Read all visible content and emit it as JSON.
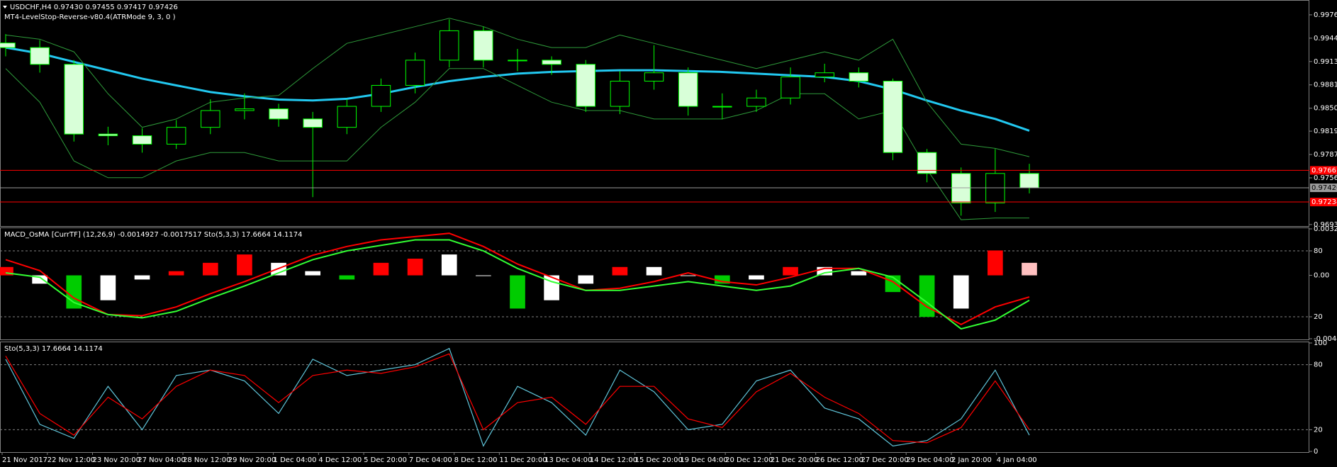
{
  "chart_data": [
    {
      "type": "candlestick",
      "title": "USDCHF,H4  0.97430 0.97455 0.97417 0.97426",
      "subtitle": "MT4-LevelStop-Reverse-v80.4(ATRMode 9, 3, 0 )",
      "open": [
        0.9938,
        0.99318,
        0.99092,
        0.98151,
        0.98128,
        0.98015,
        0.98242,
        0.98468,
        0.98491,
        0.98355,
        0.98242,
        0.98525,
        0.98808,
        0.99148,
        0.99545,
        0.99148,
        0.99148,
        0.99092,
        0.98525,
        0.98865,
        0.98978,
        0.98525,
        0.98525,
        0.98638,
        0.98922,
        0.98978,
        0.98865,
        0.97902,
        0.97619,
        0.97222,
        0.97619
      ],
      "high": [
        0.995,
        0.9942,
        0.9915,
        0.9825,
        0.9823,
        0.9834,
        0.9862,
        0.987,
        0.9856,
        0.9845,
        0.9862,
        0.989,
        0.9925,
        0.997,
        0.996,
        0.993,
        0.992,
        0.9915,
        0.99,
        0.9935,
        0.9905,
        0.987,
        0.9875,
        0.9905,
        0.991,
        0.9905,
        0.989,
        0.9795,
        0.977,
        0.9795,
        0.9775
      ],
      "low": [
        0.992,
        0.9898,
        0.9805,
        0.98,
        0.979,
        0.9795,
        0.9815,
        0.9835,
        0.9825,
        0.973,
        0.9815,
        0.9845,
        0.987,
        0.9905,
        0.9905,
        0.99,
        0.9895,
        0.9845,
        0.9842,
        0.9875,
        0.984,
        0.9835,
        0.9845,
        0.9855,
        0.9885,
        0.9878,
        0.978,
        0.975,
        0.9705,
        0.971,
        0.9735
      ],
      "close": [
        0.99318,
        0.99092,
        0.98151,
        0.98128,
        0.98015,
        0.98242,
        0.98468,
        0.98491,
        0.98355,
        0.98242,
        0.98525,
        0.98808,
        0.99148,
        0.99545,
        0.99148,
        0.99148,
        0.99092,
        0.98525,
        0.98865,
        0.98978,
        0.98525,
        0.98525,
        0.98638,
        0.98922,
        0.98978,
        0.98865,
        0.97902,
        0.97619,
        0.97222,
        0.97619,
        0.97426
      ],
      "wick_color": "#00ff00",
      "bull_fill": "#000000",
      "bear_fill": "#d8ffd8",
      "overlays": [
        {
          "color": "#22c8f0",
          "width": 3,
          "values": [
            0.99318,
            0.99239,
            0.99125,
            0.99012,
            0.98899,
            0.98808,
            0.98718,
            0.98661,
            0.98616,
            0.98604,
            0.98627,
            0.98695,
            0.98786,
            0.98865,
            0.98922,
            0.98967,
            0.9899,
            0.99001,
            0.99012,
            0.99012,
            0.99001,
            0.9899,
            0.98967,
            0.98944,
            0.98922,
            0.98865,
            0.98752,
            0.98604,
            0.98468,
            0.98355,
            0.98196
          ]
        },
        {
          "color": "#2e9a3a",
          "width": 1,
          "values": [
            0.99488,
            0.99431,
            0.99261,
            0.98695,
            0.98242,
            0.98355,
            0.98581,
            0.98638,
            0.98672,
            0.99035,
            0.99375,
            0.99488,
            0.99601,
            0.99714,
            0.99601,
            0.99431,
            0.99318,
            0.99318,
            0.99488,
            0.99375,
            0.99261,
            0.99148,
            0.99035,
            0.99148,
            0.99261,
            0.99148,
            0.99431,
            0.98581,
            0.98015,
            0.97958,
            0.97845
          ]
        },
        {
          "color": "#2e9a3a",
          "width": 1,
          "values": [
            0.99035,
            0.98581,
            0.97788,
            0.97562,
            0.97562,
            0.97788,
            0.97902,
            0.97902,
            0.97788,
            0.97788,
            0.97788,
            0.98242,
            0.98581,
            0.99035,
            0.99035,
            0.98808,
            0.98581,
            0.98468,
            0.98468,
            0.98355,
            0.98355,
            0.98355,
            0.98468,
            0.98695,
            0.98695,
            0.98355,
            0.98468,
            0.97675,
            0.96995,
            0.97018,
            0.97018
          ]
        }
      ],
      "levels": [
        {
          "value": 0.97661,
          "color": "#ff0000",
          "text_color": "#ffffff"
        },
        {
          "value": 0.97234,
          "color": "#ff0000",
          "text_color": "#ffffff"
        },
        {
          "value": 0.97426,
          "color": "#9a9a9a",
          "text_color": "#000000"
        }
      ],
      "ylim": [
        0.96919,
        0.99941
      ],
      "yticks": [
        {
          "value": 0.9976,
          "label": "0.99760"
        },
        0.99445,
        {
          "value": 0.9913,
          "label": "0.99130"
        },
        0.98815,
        {
          "value": 0.985,
          "label": "0.98500"
        },
        {
          "value": 0.9819,
          "label": "0.98190"
        },
        0.97875,
        {
          "value": 0.9756,
          "label": "0.97560"
        },
        {
          "value": 0.9693,
          "label": "0.96930"
        }
      ]
    },
    {
      "type": "bar",
      "title": "MACD_OsMA [CurrTF] (12,26,9) -0.0014927 -0.0017517  Sto(5,3,3) 17.6664 14.1174",
      "values": [
        0.00058,
        -0.00058,
        -0.00231,
        -0.00173,
        -0.00029,
        0.00029,
        0.00087,
        0.00145,
        0.00087,
        0.00029,
        -0.00029,
        0.00087,
        0.00116,
        0.00145,
        0.0,
        -0.00231,
        -0.00173,
        -0.00058,
        0.00058,
        0.00058,
        0.0,
        -0.00058,
        -0.00029,
        0.00058,
        0.00058,
        0.00029,
        -0.00116,
        -0.00289,
        -0.00231,
        0.00173,
        0.00087
      ],
      "colors": [
        "#ff0000",
        "#ffffff",
        "#00cc00",
        "#ffffff",
        "#ffffff",
        "#ff0000",
        "#ff0000",
        "#ff0000",
        "#ffffff",
        "#ffffff",
        "#00cc00",
        "#ff0000",
        "#ff0000",
        "#ffffff",
        "#ffffff",
        "#00cc00",
        "#ffffff",
        "#ffffff",
        "#ff0000",
        "#ffffff",
        "#ffffff",
        "#00cc00",
        "#ffffff",
        "#ff0000",
        "#ffffff",
        "#ffffff",
        "#00cc00",
        "#00cc00",
        "#ffffff",
        "#ff0000",
        "#ffc0c0"
      ],
      "series": [
        {
          "color": "#ff0000",
          "axis": "y2",
          "values": [
            72,
            62,
            37,
            22,
            21,
            29,
            41,
            52,
            64,
            76,
            84,
            90,
            93,
            96,
            84,
            68,
            56,
            44,
            46,
            52,
            60,
            52,
            49,
            56,
            64,
            64,
            52,
            29,
            13,
            29,
            38
          ]
        },
        {
          "color": "#33ff33",
          "axis": "y2",
          "values": [
            60,
            56,
            33,
            22,
            19,
            25,
            37,
            48,
            60,
            72,
            80,
            85,
            90,
            90,
            80,
            64,
            52,
            44,
            44,
            48,
            52,
            48,
            44,
            48,
            60,
            64,
            56,
            33,
            9,
            17,
            35
          ]
        }
      ],
      "ylim": [
        -0.004406,
        0.003228
      ],
      "yticks": [
        0.003228,
        {
          "value": 0,
          "label": "0.00"
        },
        -0.004406
      ],
      "y2lim": [
        0,
        100
      ],
      "y2ticks": [
        80,
        20
      ]
    },
    {
      "type": "line",
      "title": "Sto(5,3,3) 17.6664 14.1174",
      "series": [
        {
          "color": "#5fc4d9",
          "values": [
            85,
            25,
            12,
            60,
            20,
            70,
            75,
            65,
            35,
            85,
            70,
            75,
            80,
            95,
            5,
            60,
            45,
            15,
            75,
            55,
            20,
            25,
            65,
            75,
            40,
            30,
            5,
            10,
            30,
            75,
            15
          ]
        },
        {
          "color": "#ff0000",
          "values": [
            88,
            35,
            15,
            50,
            30,
            60,
            75,
            70,
            45,
            70,
            75,
            72,
            78,
            90,
            20,
            45,
            50,
            25,
            60,
            60,
            30,
            22,
            55,
            72,
            50,
            35,
            10,
            8,
            22,
            65,
            20
          ]
        }
      ],
      "ylim": [
        0,
        100
      ],
      "yticks": [
        100,
        80,
        20,
        0
      ],
      "xtick_labels": [
        "21 Nov 2017",
        "22 Nov 12:00",
        "23 Nov 20:00",
        "27 Nov 04:00",
        "28 Nov 12:00",
        "29 Nov 20:00",
        "1 Dec 04:00",
        "4 Dec 12:00",
        "5 Dec 20:00",
        "7 Dec 04:00",
        "8 Dec 12:00",
        "11 Dec 20:00",
        "13 Dec 04:00",
        "14 Dec 12:00",
        "15 Dec 20:00",
        "19 Dec 04:00",
        "20 Dec 12:00",
        "21 Dec 20:00",
        "26 Dec 12:00",
        "27 Dec 20:00",
        "29 Dec 04:00",
        "2 Jan 20:00",
        "4 Jan 04:00"
      ]
    }
  ]
}
